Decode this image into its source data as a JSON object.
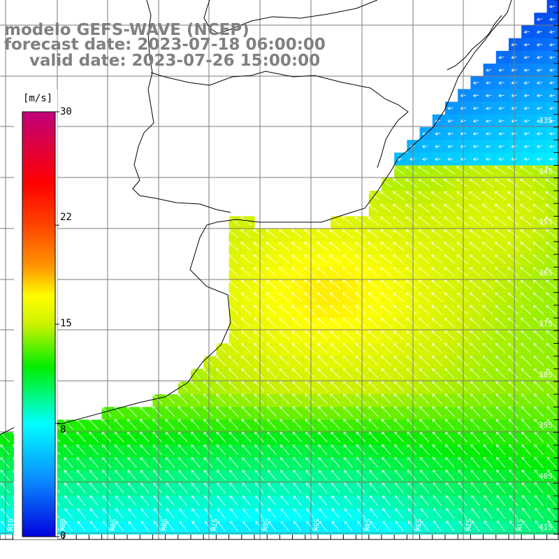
{
  "title": {
    "line1": "modelo GEFS-WAVE (NCEP)",
    "line2": "forecast date: 2023-07-18 06:00:00",
    "line3": "valid date: 2023-07-26 15:00:00"
  },
  "colorbar": {
    "unit": "[m/s]",
    "min": 0,
    "max": 30,
    "ticks": [
      {
        "value": 30,
        "label": "30"
      },
      {
        "value": 22,
        "label": "22"
      },
      {
        "value": 15,
        "label": "15"
      },
      {
        "value": 8,
        "label": "8"
      },
      {
        "value": 0,
        "label": "0"
      }
    ],
    "colors": {
      "v0": "#0000dd",
      "v4": "#0a8aff",
      "v8": "#00ffff",
      "v12": "#00ee00",
      "v15": "#ccf000",
      "v17": "#ffff00",
      "v19": "#ff9900",
      "v22": "#ff4400",
      "v25": "#ff0000",
      "v30": "#c0007a"
    }
  },
  "map": {
    "lat_labels": [
      "33S",
      "34S",
      "35S",
      "36S",
      "37S",
      "38S",
      "39S",
      "40S",
      "41S"
    ],
    "lon_labels": [
      "61W",
      "60W",
      "59W",
      "58W",
      "57W",
      "56W",
      "55W",
      "54W",
      "53W",
      "52W",
      "51W"
    ],
    "land_color": "#ffffff",
    "coast_color": "#000000",
    "grid_color": "#7a7a7a",
    "arrow_color": "#ffffff"
  }
}
